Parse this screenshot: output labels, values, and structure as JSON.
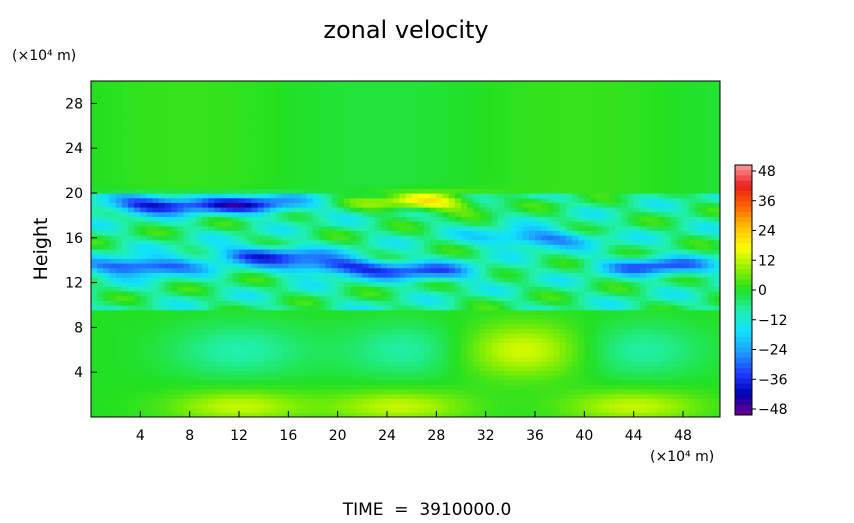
{
  "chart_data": {
    "type": "heatmap",
    "title": "zonal velocity",
    "ylabel": "Height",
    "y_unit": "(×10⁴ m)",
    "x_unit": "(×10⁴ m)",
    "footer": "TIME  =  3910000.0",
    "x_ticks": [
      "4",
      "8",
      "12",
      "16",
      "20",
      "24",
      "28",
      "32",
      "36",
      "40",
      "44",
      "48"
    ],
    "y_ticks": [
      "4",
      "8",
      "12",
      "16",
      "20",
      "24",
      "28"
    ],
    "xlim": [
      0,
      51
    ],
    "ylim": [
      0,
      30
    ],
    "colorbar": {
      "range": [
        -48,
        48
      ],
      "tick_labels": [
        "48",
        "36",
        "24",
        "12",
        "0",
        "−12",
        "−24",
        "−36",
        "−48"
      ]
    },
    "field_features": [
      {
        "kind": "background",
        "y_from": 20,
        "y_to": 30,
        "value": 0
      },
      {
        "kind": "min",
        "x": 5,
        "y": 19,
        "value": -30
      },
      {
        "kind": "min",
        "x": 13,
        "y": 19,
        "value": -28
      },
      {
        "kind": "max",
        "x": 27,
        "y": 19.2,
        "value": 24
      },
      {
        "kind": "min",
        "x": 4,
        "y": 13.5,
        "value": -30
      },
      {
        "kind": "min",
        "x": 14,
        "y": 14.5,
        "value": -26
      },
      {
        "kind": "min",
        "x": 20,
        "y": 13.5,
        "value": -26
      },
      {
        "kind": "min",
        "x": 27,
        "y": 13,
        "value": -22
      },
      {
        "kind": "min",
        "x": 36,
        "y": 16,
        "value": -22
      },
      {
        "kind": "min",
        "x": 46,
        "y": 13.5,
        "value": -24
      },
      {
        "kind": "min",
        "x": 12,
        "y": 6,
        "value": -8
      },
      {
        "kind": "min",
        "x": 26,
        "y": 6,
        "value": -8
      },
      {
        "kind": "min",
        "x": 44,
        "y": 6,
        "value": -8
      },
      {
        "kind": "max",
        "x": 35,
        "y": 6,
        "value": 14
      },
      {
        "kind": "max",
        "x": 12,
        "y": 1,
        "value": 12
      },
      {
        "kind": "max",
        "x": 25,
        "y": 1,
        "value": 12
      },
      {
        "kind": "max",
        "x": 44,
        "y": 1,
        "value": 12
      }
    ]
  }
}
